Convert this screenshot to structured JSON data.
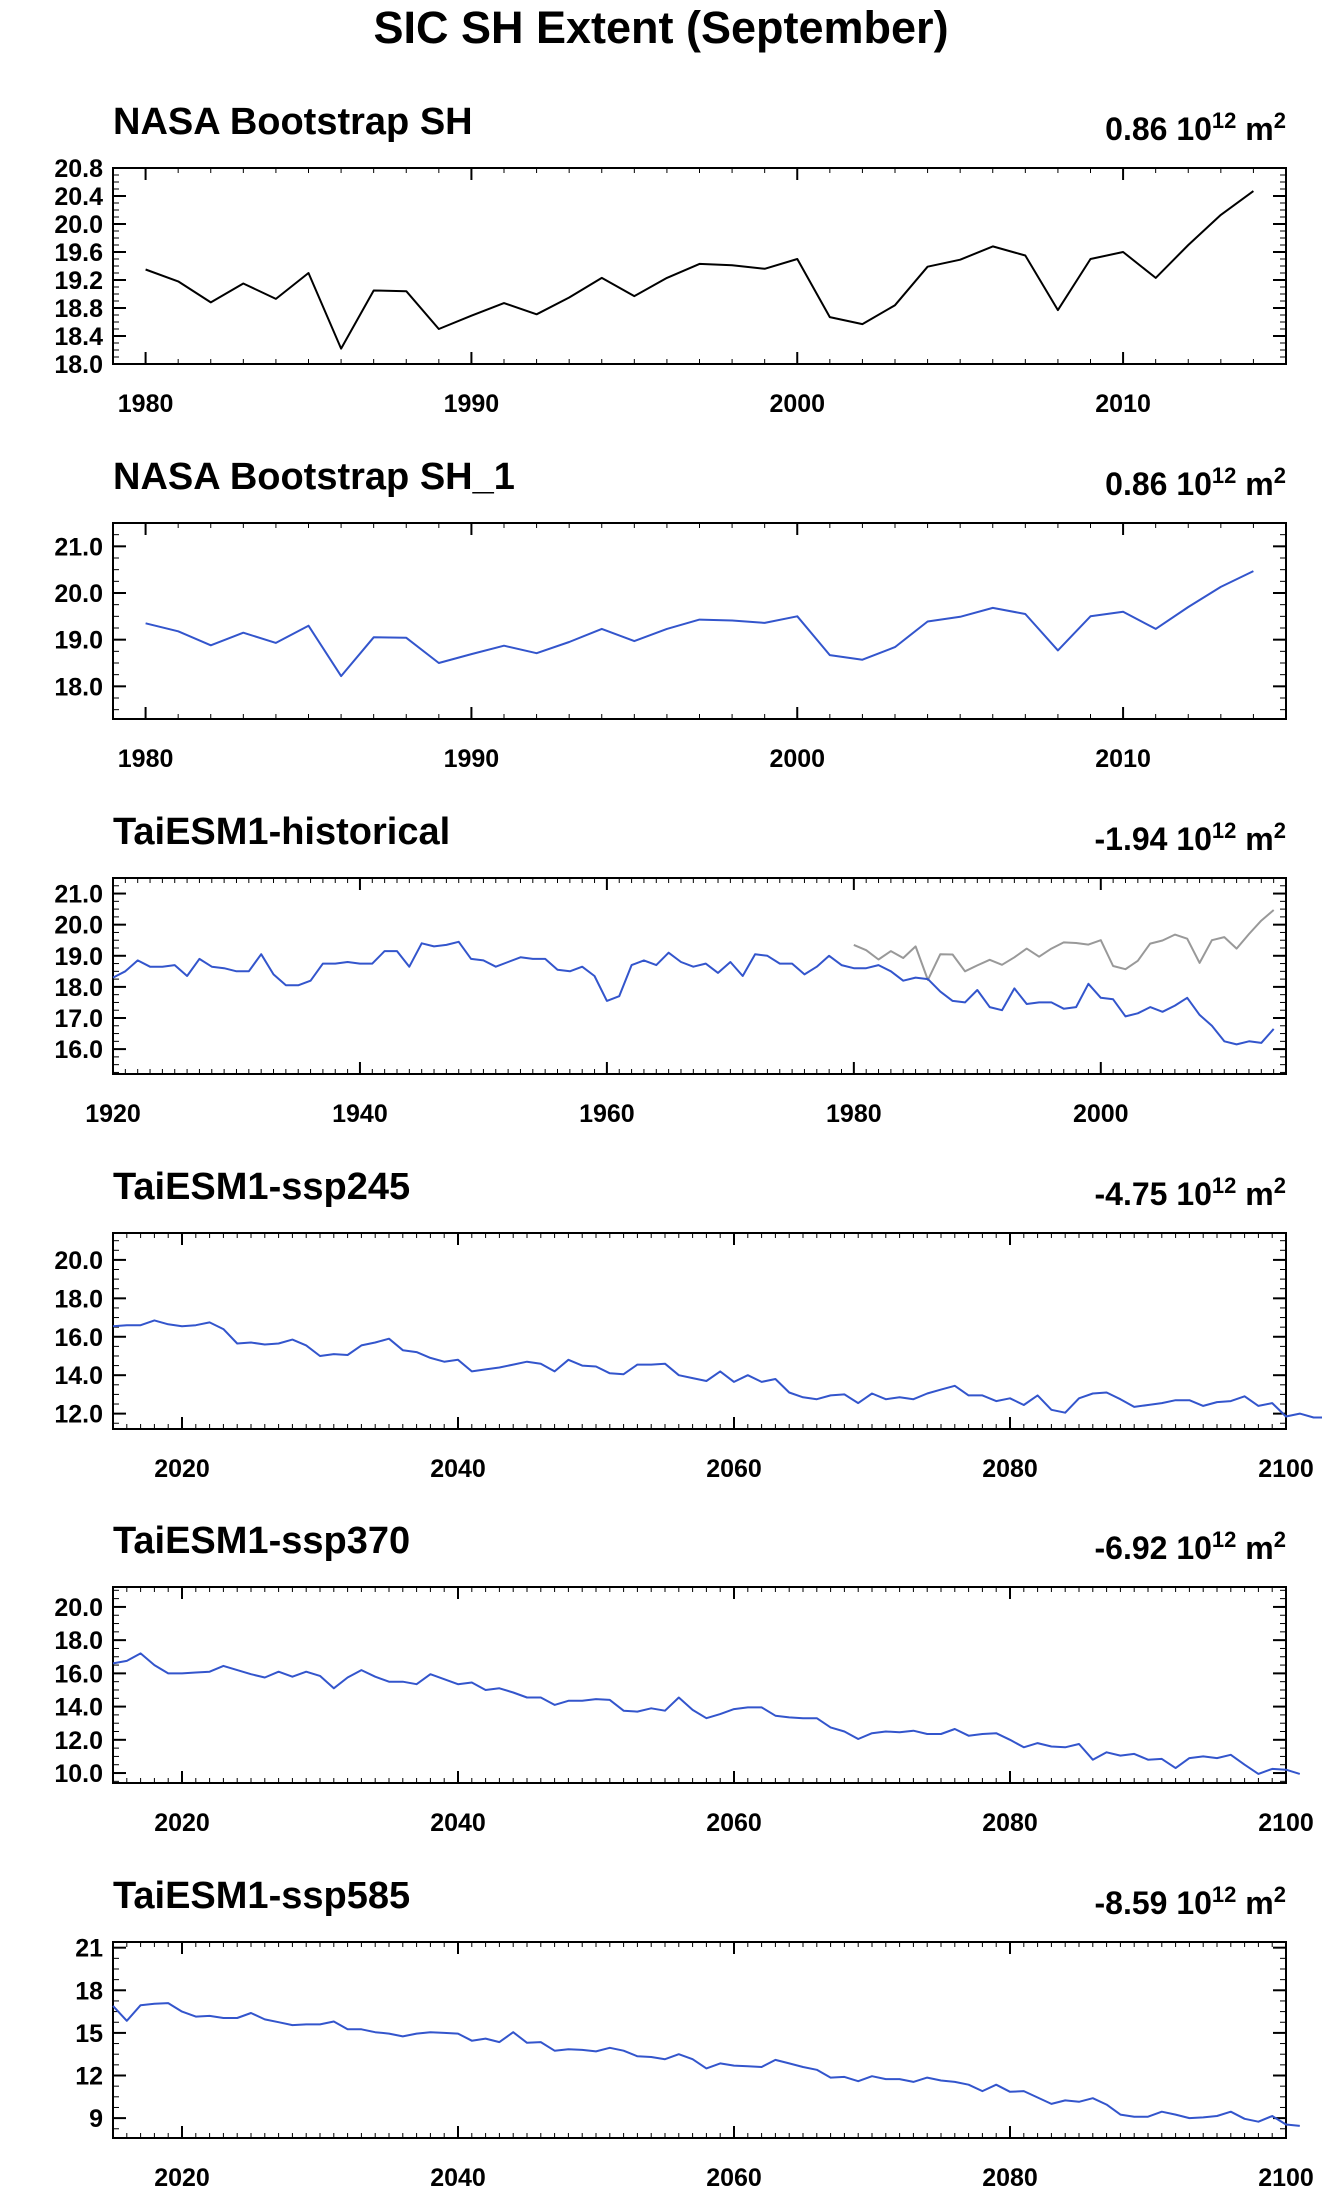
{
  "title": "SIC SH Extent (September)",
  "colors": {
    "obs": "#000000",
    "model": "#3355cc",
    "obs_overlay": "#999999"
  },
  "chart_data": [
    {
      "type": "line",
      "title": "NASA Bootstrap SH",
      "value_text": "0.86 10",
      "value_exp": "12",
      "value_unit": " m",
      "value_unit_exp": "2",
      "xlim": [
        1979,
        2015
      ],
      "ylim": [
        18.0,
        20.8
      ],
      "yticks": [
        "18.0",
        "18.4",
        "18.8",
        "19.2",
        "19.6",
        "20.0",
        "20.4",
        "20.8"
      ],
      "xticks": [
        "1980",
        "1990",
        "2000",
        "2010"
      ],
      "series": [
        {
          "x_start": 1980,
          "color_key": "obs",
          "values": [
            19.35,
            19.18,
            18.88,
            19.15,
            18.93,
            19.3,
            18.22,
            19.05,
            19.04,
            18.5,
            18.69,
            18.87,
            18.71,
            18.95,
            19.23,
            18.97,
            19.23,
            19.43,
            19.41,
            19.36,
            19.5,
            18.67,
            18.57,
            18.84,
            19.39,
            19.49,
            19.68,
            19.55,
            18.77,
            19.5,
            19.6,
            19.23,
            19.7,
            20.13,
            20.47
          ]
        }
      ]
    },
    {
      "type": "line",
      "title": "NASA Bootstrap SH_1",
      "value_text": "0.86 10",
      "value_exp": "12",
      "value_unit": " m",
      "value_unit_exp": "2",
      "xlim": [
        1979,
        2015
      ],
      "ylim": [
        17.3,
        21.5
      ],
      "yticks": [
        "18.0",
        "19.0",
        "20.0",
        "21.0"
      ],
      "xticks": [
        "1980",
        "1990",
        "2000",
        "2010"
      ],
      "series": [
        {
          "x_start": 1980,
          "color_key": "model",
          "values": [
            19.35,
            19.18,
            18.88,
            19.15,
            18.93,
            19.3,
            18.22,
            19.05,
            19.04,
            18.5,
            18.69,
            18.87,
            18.71,
            18.95,
            19.23,
            18.97,
            19.23,
            19.43,
            19.41,
            19.36,
            19.5,
            18.67,
            18.57,
            18.84,
            19.39,
            19.49,
            19.68,
            19.55,
            18.77,
            19.5,
            19.6,
            19.23,
            19.7,
            20.13,
            20.47
          ]
        }
      ]
    },
    {
      "type": "line",
      "title": "TaiESM1-historical",
      "value_text": "-1.94 10",
      "value_exp": "12",
      "value_unit": " m",
      "value_unit_exp": "2",
      "xlim": [
        1920,
        2015
      ],
      "ylim": [
        15.2,
        21.5
      ],
      "yticks": [
        "16.0",
        "17.0",
        "18.0",
        "19.0",
        "20.0",
        "21.0"
      ],
      "xticks": [
        "1920",
        "1940",
        "1960",
        "1980",
        "2000"
      ],
      "series": [
        {
          "x_start": 1920,
          "color_key": "model",
          "values": [
            18.3,
            18.5,
            18.85,
            18.65,
            18.65,
            18.7,
            18.35,
            18.9,
            18.65,
            18.6,
            18.5,
            18.5,
            19.05,
            18.4,
            18.05,
            18.05,
            18.2,
            18.75,
            18.75,
            18.8,
            18.75,
            18.75,
            19.15,
            19.15,
            18.65,
            19.4,
            19.3,
            19.35,
            19.45,
            18.9,
            18.85,
            18.65,
            18.8,
            18.95,
            18.9,
            18.9,
            18.55,
            18.5,
            18.65,
            18.35,
            17.55,
            17.7,
            18.7,
            18.85,
            18.7,
            19.1,
            18.8,
            18.65,
            18.75,
            18.45,
            18.8,
            18.35,
            19.05,
            19.0,
            18.75,
            18.75,
            18.4,
            18.65,
            19.0,
            18.7,
            18.6,
            18.6,
            18.7,
            18.5,
            18.2,
            18.3,
            18.25,
            17.85,
            17.55,
            17.5,
            17.9,
            17.35,
            17.25,
            17.95,
            17.45,
            17.5,
            17.5,
            17.3,
            17.35,
            18.1,
            17.65,
            17.6,
            17.05,
            17.15,
            17.35,
            17.2,
            17.4,
            17.65,
            17.1,
            16.75,
            16.25,
            16.15,
            16.25,
            16.2,
            16.65
          ]
        },
        {
          "x_start": 1980,
          "color_key": "obs_overlay",
          "values": [
            19.35,
            19.18,
            18.88,
            19.15,
            18.93,
            19.3,
            18.22,
            19.05,
            19.04,
            18.5,
            18.69,
            18.87,
            18.71,
            18.95,
            19.23,
            18.97,
            19.23,
            19.43,
            19.41,
            19.36,
            19.5,
            18.67,
            18.57,
            18.84,
            19.39,
            19.49,
            19.68,
            19.55,
            18.77,
            19.5,
            19.6,
            19.23,
            19.7,
            20.13,
            20.47
          ]
        }
      ]
    },
    {
      "type": "line",
      "title": "TaiESM1-ssp245",
      "value_text": "-4.75 10",
      "value_exp": "12",
      "value_unit": " m",
      "value_unit_exp": "2",
      "xlim": [
        2015,
        2100
      ],
      "ylim": [
        11.2,
        21.4
      ],
      "yticks": [
        "12.0",
        "14.0",
        "16.0",
        "18.0",
        "20.0"
      ],
      "xticks": [
        "2020",
        "2040",
        "2060",
        "2080",
        "2100"
      ],
      "series": [
        {
          "x_start": 2015,
          "color_key": "model",
          "values": [
            16.55,
            16.6,
            16.6,
            16.85,
            16.65,
            16.55,
            16.6,
            16.75,
            16.4,
            15.65,
            15.7,
            15.6,
            15.65,
            15.85,
            15.55,
            15.0,
            15.1,
            15.05,
            15.55,
            15.7,
            15.9,
            15.3,
            15.2,
            14.9,
            14.7,
            14.8,
            14.2,
            14.3,
            14.4,
            14.55,
            14.7,
            14.6,
            14.2,
            14.8,
            14.5,
            14.45,
            14.1,
            14.05,
            14.55,
            14.55,
            14.6,
            14.0,
            13.85,
            13.7,
            14.2,
            13.65,
            14.0,
            13.65,
            13.8,
            13.1,
            12.85,
            12.75,
            12.95,
            13.0,
            12.55,
            13.05,
            12.75,
            12.85,
            12.75,
            13.05,
            13.25,
            13.45,
            12.95,
            12.95,
            12.65,
            12.8,
            12.45,
            12.95,
            12.2,
            12.05,
            12.8,
            13.05,
            13.1,
            12.75,
            12.35,
            12.45,
            12.55,
            12.7,
            12.7,
            12.4,
            12.6,
            12.65,
            12.9,
            12.4,
            12.55,
            11.85,
            12.0,
            11.8,
            11.8,
            12.0
          ]
        }
      ]
    },
    {
      "type": "line",
      "title": "TaiESM1-ssp370",
      "value_text": "-6.92 10",
      "value_exp": "12",
      "value_unit": " m",
      "value_unit_exp": "2",
      "xlim": [
        2015,
        2100
      ],
      "ylim": [
        9.4,
        21.2
      ],
      "yticks": [
        "10.0",
        "12.0",
        "14.0",
        "16.0",
        "18.0",
        "20.0"
      ],
      "xticks": [
        "2020",
        "2040",
        "2060",
        "2080",
        "2100"
      ],
      "series": [
        {
          "x_start": 2015,
          "color_key": "model",
          "values": [
            16.6,
            16.75,
            17.2,
            16.5,
            16.0,
            16.0,
            16.05,
            16.1,
            16.45,
            16.2,
            15.95,
            15.75,
            16.1,
            15.8,
            16.1,
            15.85,
            15.1,
            15.75,
            16.2,
            15.8,
            15.5,
            15.5,
            15.35,
            15.95,
            15.65,
            15.35,
            15.45,
            15.0,
            15.1,
            14.85,
            14.55,
            14.55,
            14.1,
            14.35,
            14.35,
            14.45,
            14.4,
            13.75,
            13.7,
            13.9,
            13.75,
            14.55,
            13.8,
            13.3,
            13.55,
            13.85,
            13.95,
            13.95,
            13.45,
            13.35,
            13.3,
            13.3,
            12.75,
            12.5,
            12.05,
            12.4,
            12.5,
            12.45,
            12.55,
            12.35,
            12.35,
            12.65,
            12.25,
            12.35,
            12.4,
            12.0,
            11.55,
            11.8,
            11.6,
            11.55,
            11.75,
            10.8,
            11.25,
            11.05,
            11.15,
            10.8,
            10.85,
            10.3,
            10.9,
            11.0,
            10.9,
            11.1,
            10.5,
            9.95,
            10.25,
            10.2,
            9.95
          ]
        }
      ]
    },
    {
      "type": "line",
      "title": "TaiESM1-ssp585",
      "value_text": "-8.59 10",
      "value_exp": "12",
      "value_unit": " m",
      "value_unit_exp": "2",
      "xlim": [
        2015,
        2100
      ],
      "ylim": [
        7.6,
        21.4
      ],
      "yticks": [
        "9",
        "12",
        "15",
        "18",
        "21"
      ],
      "xticks": [
        "2020",
        "2040",
        "2060",
        "2080",
        "2100"
      ],
      "series": [
        {
          "x_start": 2015,
          "color_key": "model",
          "values": [
            16.9,
            15.85,
            16.95,
            17.05,
            17.1,
            16.5,
            16.15,
            16.2,
            16.05,
            16.05,
            16.4,
            15.95,
            15.75,
            15.55,
            15.6,
            15.6,
            15.8,
            15.25,
            15.25,
            15.05,
            14.95,
            14.75,
            14.95,
            15.05,
            15.0,
            14.95,
            14.45,
            14.6,
            14.35,
            15.05,
            14.3,
            14.35,
            13.75,
            13.85,
            13.8,
            13.7,
            13.95,
            13.75,
            13.35,
            13.3,
            13.15,
            13.5,
            13.15,
            12.5,
            12.85,
            12.7,
            12.65,
            12.6,
            13.1,
            12.85,
            12.6,
            12.4,
            11.85,
            11.9,
            11.6,
            11.95,
            11.75,
            11.75,
            11.55,
            11.85,
            11.65,
            11.55,
            11.35,
            10.9,
            11.35,
            10.85,
            10.9,
            10.45,
            10.0,
            10.25,
            10.15,
            10.4,
            9.95,
            9.25,
            9.1,
            9.1,
            9.45,
            9.25,
            9.0,
            9.05,
            9.15,
            9.45,
            8.95,
            8.75,
            9.15,
            8.55,
            8.45
          ]
        }
      ]
    }
  ]
}
